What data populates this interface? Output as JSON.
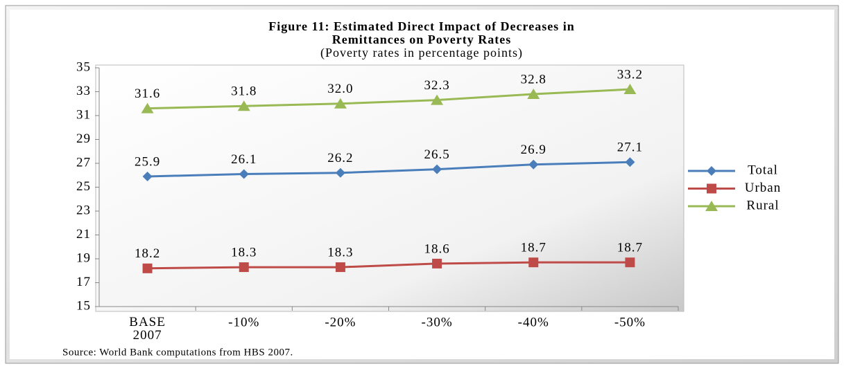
{
  "chart_data": {
    "type": "line",
    "title": [
      "Figure 11: Estimated Direct Impact of Decreases in",
      "Remittances on Poverty Rates"
    ],
    "subtitle": "(Poverty rates in percentage points)",
    "source": "Source: World Bank computations from HBS 2007.",
    "categories": [
      "BASE 2007",
      "-10%",
      "-20%",
      "-30%",
      "-40%",
      "-50%"
    ],
    "series": [
      {
        "name": "Total",
        "color": "#4a7ebb",
        "marker": "diamond",
        "values": [
          25.9,
          26.1,
          26.2,
          26.5,
          26.9,
          27.1
        ],
        "value_labels": [
          "25.9",
          "26.1",
          "26.2",
          "26.5",
          "26.9",
          "27.1"
        ]
      },
      {
        "name": "Urban",
        "color": "#be4b48",
        "marker": "square",
        "values": [
          18.2,
          18.3,
          18.3,
          18.6,
          18.7,
          18.7
        ],
        "value_labels": [
          "18.2",
          "18.3",
          "18.3",
          "18.6",
          "18.7",
          "18.7"
        ]
      },
      {
        "name": "Rural",
        "color": "#98b954",
        "marker": "triangle",
        "values": [
          31.6,
          31.8,
          32.0,
          32.3,
          32.8,
          33.2
        ],
        "value_labels": [
          "31.6",
          "31.8",
          "32.0",
          "32.3",
          "32.8",
          "33.2"
        ]
      }
    ],
    "ylim": [
      15,
      35
    ],
    "yticks": [
      15,
      17,
      19,
      21,
      23,
      25,
      27,
      29,
      31,
      33,
      35
    ],
    "legend": "right"
  }
}
